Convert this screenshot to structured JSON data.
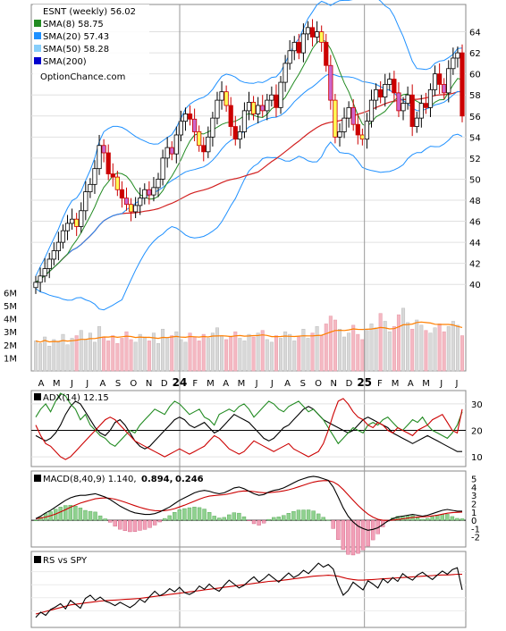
{
  "chart_data": [
    {
      "type": "candlestick",
      "panel": "price",
      "legend": [
        {
          "label": "ESNT (weekly) 56.02",
          "color": "#ffffff"
        },
        {
          "label": "SMA(8) 58.75",
          "color": "#228b22"
        },
        {
          "label": "SMA(20) 57.43",
          "color": "#1e90ff"
        },
        {
          "label": "SMA(50) 58.28",
          "color": "#87cefa"
        },
        {
          "label": "SMA(200)",
          "color": "#0000cd"
        }
      ],
      "watermark": "OptionChance.com",
      "ylim": [
        39,
        66
      ],
      "yticks": [
        40,
        42,
        44,
        46,
        48,
        50,
        52,
        54,
        56,
        58,
        60,
        62,
        64
      ],
      "volume_ticks": [
        "6M",
        "5M",
        "4M",
        "3M",
        "2M",
        "1M"
      ],
      "volume_ylim": [
        0,
        6.5
      ],
      "x_labels": [
        "A",
        "M",
        "J",
        "J",
        "A",
        "S",
        "O",
        "N",
        "D",
        "24",
        "F",
        "M",
        "A",
        "M",
        "J",
        "J",
        "A",
        "S",
        "O",
        "N",
        "D",
        "25",
        "F",
        "M",
        "A",
        "M",
        "J",
        "J"
      ],
      "close": [
        40.2,
        40.8,
        41.5,
        42.4,
        43.2,
        44.0,
        45.1,
        45.8,
        46.2,
        45.5,
        47.0,
        48.8,
        49.5,
        51.0,
        53.2,
        52.5,
        50.5,
        50.2,
        49.0,
        48.2,
        47.6,
        46.9,
        47.5,
        48.2,
        49.0,
        48.5,
        49.2,
        50.0,
        52.0,
        53.0,
        52.4,
        54.2,
        55.5,
        56.2,
        55.7,
        54.5,
        53.2,
        52.6,
        54.0,
        55.8,
        57.5,
        58.3,
        57.0,
        55.0,
        53.8,
        54.5,
        56.5,
        57.3,
        56.2,
        57.0,
        56.5,
        57.5,
        58.0,
        56.8,
        59.2,
        61.0,
        62.2,
        63.0,
        62.0,
        63.8,
        64.4,
        63.5,
        64.0,
        63.0,
        60.8,
        57.5,
        54.0,
        54.5,
        55.8,
        56.8,
        55.2,
        54.2,
        53.8,
        55.5,
        57.5,
        58.5,
        57.8,
        59.0,
        59.5,
        58.2,
        56.5,
        57.2,
        58.0,
        55.0,
        55.8,
        57.2,
        56.8,
        58.5,
        60.0,
        59.0,
        58.2,
        60.5,
        61.5,
        62.0,
        56.0
      ],
      "volume": [
        2.3,
        2.1,
        2.6,
        1.9,
        2.4,
        2.2,
        2.8,
        2.0,
        2.5,
        2.7,
        3.1,
        2.4,
        2.9,
        2.2,
        3.4,
        2.6,
        2.3,
        2.7,
        2.1,
        2.5,
        3.0,
        2.4,
        2.2,
        2.8,
        2.6,
        2.3,
        2.9,
        2.1,
        3.2,
        2.5,
        2.7,
        3.0,
        2.4,
        2.2,
        2.9,
        2.6,
        2.3,
        2.8,
        2.5,
        2.9,
        3.3,
        2.7,
        2.4,
        2.6,
        3.0,
        2.5,
        2.3,
        2.8,
        2.6,
        2.9,
        3.1,
        2.4,
        2.2,
        2.7,
        2.5,
        3.0,
        2.8,
        2.3,
        2.6,
        3.2,
        2.5,
        2.9,
        3.4,
        2.7,
        3.6,
        4.2,
        3.9,
        3.2,
        2.6,
        2.9,
        3.5,
        2.8,
        2.4,
        3.1,
        3.6,
        3.3,
        4.4,
        3.8,
        3.0,
        3.4,
        4.3,
        4.8,
        3.7,
        3.2,
        3.9,
        3.5,
        3.1,
        2.9,
        3.3,
        3.6,
        3.0,
        3.4,
        3.8,
        3.5,
        2.7
      ],
      "volume_avg": [
        2.3,
        2.4,
        2.5,
        2.6,
        2.6,
        2.7,
        2.9,
        3.1,
        3.3,
        3.4,
        3.5,
        3.6,
        3.6,
        3.5
      ]
    },
    {
      "type": "line",
      "panel": "adx",
      "label": "ADX(14) 12.15",
      "ylim": [
        7,
        34
      ],
      "yticks": [
        10,
        20,
        30
      ],
      "series": [
        {
          "name": "ADX",
          "color": "#000000",
          "values": [
            18,
            17,
            16,
            17,
            19,
            22,
            26,
            29,
            31,
            30,
            27,
            24,
            21,
            19,
            18,
            20,
            23,
            24,
            22,
            19,
            16,
            14,
            13,
            14,
            16,
            18,
            20,
            22,
            24,
            25,
            24,
            22,
            21,
            22,
            23,
            21,
            19,
            20,
            22,
            24,
            26,
            25,
            24,
            23,
            21,
            19,
            17,
            16,
            17,
            19,
            21,
            22,
            24,
            26,
            28,
            29,
            28,
            26,
            24,
            23,
            22,
            21,
            20,
            19,
            20,
            22,
            24,
            25,
            24,
            23,
            22,
            21,
            19,
            18,
            17,
            16,
            15,
            16,
            17,
            18,
            17,
            16,
            15,
            14,
            13,
            12,
            12
          ]
        },
        {
          "name": "+DI",
          "color": "#228b22",
          "values": [
            25,
            28,
            30,
            27,
            31,
            34,
            33,
            30,
            28,
            24,
            26,
            22,
            20,
            18,
            17,
            15,
            14,
            16,
            18,
            20,
            19,
            22,
            24,
            26,
            28,
            27,
            26,
            29,
            31,
            30,
            28,
            26,
            27,
            28,
            25,
            24,
            22,
            26,
            27,
            28,
            27,
            29,
            30,
            28,
            25,
            27,
            29,
            31,
            30,
            28,
            27,
            29,
            30,
            31,
            29,
            27,
            28,
            26,
            24,
            21,
            18,
            15,
            17,
            19,
            21,
            20,
            19,
            22,
            23,
            22,
            24,
            25,
            23,
            21,
            20,
            22,
            24,
            23,
            25,
            22,
            20,
            19,
            18,
            17,
            19,
            22,
            27
          ]
        },
        {
          "name": "-DI",
          "color": "#cc0000",
          "values": [
            22,
            18,
            15,
            14,
            12,
            10,
            9,
            10,
            12,
            14,
            16,
            18,
            20,
            22,
            24,
            25,
            24,
            22,
            20,
            18,
            16,
            15,
            14,
            13,
            12,
            11,
            10,
            11,
            12,
            13,
            12,
            11,
            12,
            13,
            14,
            16,
            18,
            17,
            15,
            13,
            12,
            11,
            12,
            14,
            16,
            15,
            14,
            13,
            12,
            13,
            14,
            15,
            13,
            12,
            11,
            10,
            11,
            12,
            15,
            20,
            26,
            31,
            32,
            30,
            27,
            25,
            24,
            22,
            21,
            23,
            22,
            20,
            19,
            21,
            20,
            19,
            18,
            20,
            21,
            22,
            24,
            25,
            26,
            23,
            20,
            19,
            28
          ]
        }
      ]
    },
    {
      "type": "macd",
      "panel": "macd",
      "label": "MACD(8,40,9) 1.140,",
      "values_label": [
        "0.894,",
        "0.246"
      ],
      "values_label_colors": [
        "#cc0000",
        "#1e50c8"
      ],
      "ylim": [
        -3,
        5.5
      ],
      "yticks": [
        -2,
        -1,
        0,
        1,
        2,
        3,
        4,
        5
      ],
      "macd": [
        0.2,
        0.5,
        0.9,
        1.2,
        1.6,
        2.0,
        2.4,
        2.7,
        2.9,
        3.0,
        3.0,
        3.1,
        3.2,
        3.0,
        2.8,
        2.5,
        2.1,
        1.7,
        1.4,
        1.1,
        0.9,
        0.8,
        0.7,
        0.7,
        0.8,
        1.0,
        1.3,
        1.6,
        2.0,
        2.4,
        2.7,
        3.0,
        3.3,
        3.5,
        3.6,
        3.5,
        3.3,
        3.2,
        3.3,
        3.6,
        3.9,
        4.0,
        3.8,
        3.5,
        3.2,
        3.0,
        3.1,
        3.4,
        3.6,
        3.7,
        3.9,
        4.2,
        4.5,
        4.8,
        5.0,
        5.2,
        5.3,
        5.2,
        5.0,
        4.8,
        4.0,
        2.8,
        1.5,
        0.5,
        -0.2,
        -0.7,
        -1.0,
        -1.2,
        -1.1,
        -0.9,
        -0.5,
        -0.1,
        0.2,
        0.4,
        0.5,
        0.6,
        0.7,
        0.6,
        0.5,
        0.6,
        0.8,
        1.0,
        1.2,
        1.3,
        1.2,
        1.1,
        1.1
      ]
    },
    {
      "type": "line",
      "panel": "rs",
      "label": "RS vs SPY",
      "ylim": [
        0,
        10
      ],
      "series": [
        {
          "name": "RS",
          "color": "#000000",
          "values": [
            1.0,
            1.8,
            1.3,
            2.2,
            2.6,
            3.1,
            2.3,
            3.6,
            3.0,
            2.4,
            3.9,
            4.4,
            3.6,
            4.1,
            3.5,
            3.2,
            2.8,
            3.3,
            2.9,
            2.5,
            3.0,
            3.8,
            3.3,
            4.2,
            5.0,
            4.3,
            4.7,
            5.4,
            4.9,
            5.6,
            4.8,
            4.5,
            4.9,
            5.8,
            5.3,
            6.1,
            5.4,
            5.0,
            5.9,
            6.7,
            6.1,
            5.5,
            5.9,
            6.6,
            7.2,
            6.4,
            6.9,
            7.6,
            7.0,
            6.4,
            7.1,
            7.8,
            7.1,
            7.5,
            8.2,
            7.7,
            8.5,
            9.3,
            8.7,
            9.1,
            8.4,
            6.1,
            4.4,
            5.1,
            6.4,
            5.8,
            5.2,
            6.6,
            6.1,
            5.5,
            6.9,
            6.3,
            7.1,
            6.5,
            7.7,
            7.1,
            6.7,
            7.5,
            7.9,
            7.3,
            6.8,
            7.5,
            8.1,
            7.6,
            8.3,
            8.6,
            5.2
          ]
        },
        {
          "name": "RS avg",
          "color": "#cc0000",
          "values": [
            1.5,
            1.7,
            1.9,
            2.1,
            2.3,
            2.5,
            2.7,
            2.9,
            3.0,
            3.1,
            3.2,
            3.3,
            3.4,
            3.5,
            3.55,
            3.6,
            3.65,
            3.7,
            3.75,
            3.8,
            3.85,
            3.9,
            4.0,
            4.1,
            4.2,
            4.3,
            4.4,
            4.5,
            4.6,
            4.7,
            4.8,
            4.9,
            5.0,
            5.1,
            5.2,
            5.3,
            5.4,
            5.5,
            5.6,
            5.7,
            5.8,
            5.9,
            6.0,
            6.1,
            6.2,
            6.3,
            6.4,
            6.5,
            6.55,
            6.6,
            6.7,
            6.8,
            6.9,
            7.0,
            7.1,
            7.2,
            7.3,
            7.35,
            7.4,
            7.45,
            7.4,
            7.3,
            7.1,
            6.9,
            6.8,
            6.7,
            6.7,
            6.75,
            6.8,
            6.85,
            6.9,
            6.95,
            7.0,
            7.05,
            7.1,
            7.15,
            7.2,
            7.25,
            7.3,
            7.35,
            7.4,
            7.45,
            7.5,
            7.5,
            7.55,
            7.6,
            7.6
          ]
        }
      ]
    }
  ]
}
